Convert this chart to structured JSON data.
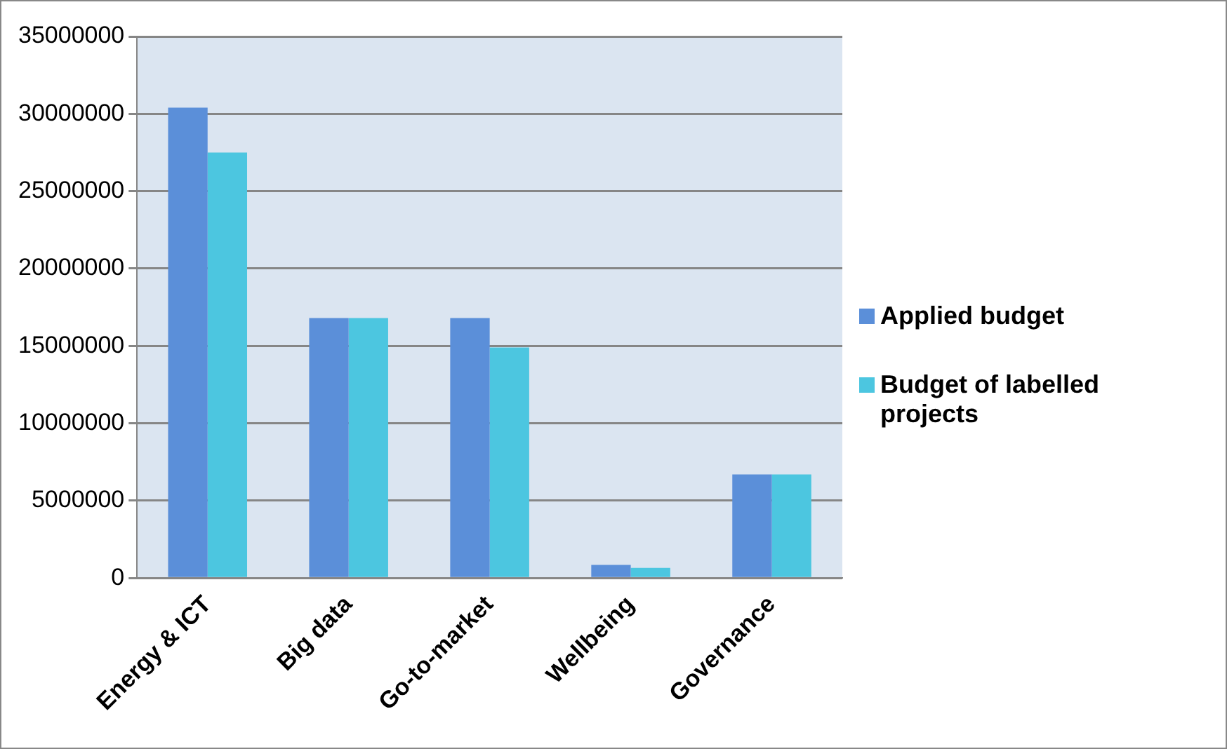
{
  "chart_data": {
    "type": "bar",
    "categories": [
      "Energy & ICT",
      "Big data",
      "Go-to-market",
      "Wellbeing",
      "Governance"
    ],
    "series": [
      {
        "name": "Applied budget",
        "color": "#5b8fd9",
        "values": [
          30400000,
          16800000,
          16800000,
          850000,
          6700000
        ]
      },
      {
        "name": "Budget of labelled projects",
        "color": "#4cc6e0",
        "values": [
          27500000,
          16800000,
          14900000,
          650000,
          6700000
        ]
      }
    ],
    "ylim": [
      0,
      35000000
    ],
    "yticks": [
      0,
      5000000,
      10000000,
      15000000,
      20000000,
      25000000,
      30000000,
      35000000
    ],
    "grid": "y",
    "legend": "right"
  }
}
